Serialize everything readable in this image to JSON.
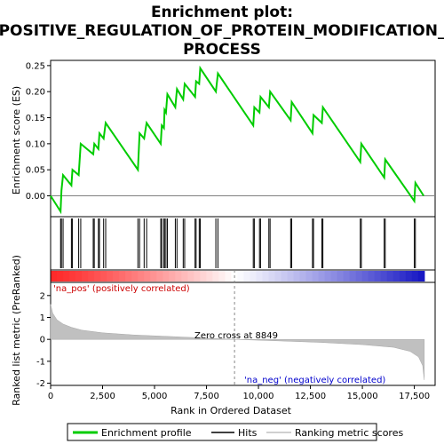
{
  "chart_data": {
    "type": "line",
    "title_lines": [
      "Enrichment plot:",
      "POSITIVE_REGULATION_OF_PROTEIN_MODIFICATION_",
      "PROCESS"
    ],
    "top_panel": {
      "ylabel": "Enrichment score (ES)",
      "ylim": [
        -0.04,
        0.26
      ],
      "yticks": [
        "0.00",
        "0.05",
        "0.10",
        "0.15",
        "0.20",
        "0.25"
      ],
      "ytick_values": [
        0.0,
        0.05,
        0.1,
        0.15,
        0.2,
        0.25
      ],
      "xlim": [
        0,
        18500
      ],
      "series_name": "Enrichment profile",
      "color": "#00cc00",
      "points": [
        [
          0,
          0.0
        ],
        [
          480,
          -0.03
        ],
        [
          520,
          0.01
        ],
        [
          600,
          0.04
        ],
        [
          1000,
          0.02
        ],
        [
          1050,
          0.05
        ],
        [
          1350,
          0.04
        ],
        [
          1450,
          0.1
        ],
        [
          2050,
          0.08
        ],
        [
          2100,
          0.1
        ],
        [
          2300,
          0.09
        ],
        [
          2350,
          0.12
        ],
        [
          2550,
          0.11
        ],
        [
          2650,
          0.14
        ],
        [
          4200,
          0.05
        ],
        [
          4280,
          0.12
        ],
        [
          4500,
          0.11
        ],
        [
          4620,
          0.14
        ],
        [
          5300,
          0.1
        ],
        [
          5350,
          0.135
        ],
        [
          5450,
          0.13
        ],
        [
          5480,
          0.165
        ],
        [
          5550,
          0.16
        ],
        [
          5620,
          0.195
        ],
        [
          6000,
          0.17
        ],
        [
          6080,
          0.205
        ],
        [
          6380,
          0.185
        ],
        [
          6450,
          0.215
        ],
        [
          6950,
          0.19
        ],
        [
          7000,
          0.22
        ],
        [
          7150,
          0.215
        ],
        [
          7200,
          0.245
        ],
        [
          7950,
          0.2
        ],
        [
          8050,
          0.235
        ],
        [
          9750,
          0.135
        ],
        [
          9800,
          0.17
        ],
        [
          10050,
          0.16
        ],
        [
          10100,
          0.19
        ],
        [
          10500,
          0.17
        ],
        [
          10560,
          0.2
        ],
        [
          11550,
          0.145
        ],
        [
          11600,
          0.18
        ],
        [
          12600,
          0.12
        ],
        [
          12650,
          0.155
        ],
        [
          13050,
          0.14
        ],
        [
          13100,
          0.17
        ],
        [
          14900,
          0.065
        ],
        [
          14950,
          0.1
        ],
        [
          16050,
          0.035
        ],
        [
          16100,
          0.07
        ],
        [
          17500,
          -0.01
        ],
        [
          17550,
          0.025
        ],
        [
          17950,
          0.0
        ]
      ]
    },
    "hits": [
      480,
      520,
      600,
      1000,
      1050,
      1350,
      1450,
      2050,
      2100,
      2300,
      2350,
      2550,
      2650,
      4200,
      4280,
      4500,
      4620,
      5300,
      5350,
      5450,
      5480,
      5550,
      5620,
      6000,
      6080,
      6380,
      6450,
      6950,
      7000,
      7150,
      7200,
      7950,
      8050,
      9750,
      9800,
      10050,
      10100,
      10500,
      10560,
      11550,
      11600,
      12600,
      12650,
      13050,
      13100,
      14900,
      14950,
      16050,
      16100,
      17500,
      17550
    ],
    "bottom_panel": {
      "ylabel": "Ranked list metric (PreRanked)",
      "xlabel": "Rank in Ordered Dataset",
      "ylim": [
        -2.1,
        2.6
      ],
      "yticks": [
        "-2",
        "-1",
        "0",
        "1",
        "2"
      ],
      "ytick_values": [
        -2,
        -1,
        0,
        1,
        2
      ],
      "xticks": [
        "0",
        "2,500",
        "5,000",
        "7,500",
        "10,000",
        "12,500",
        "15,000",
        "17,500"
      ],
      "xtick_values": [
        0,
        2500,
        5000,
        7500,
        10000,
        12500,
        15000,
        17500
      ],
      "zero_cross_label": "Zero cross at 8849",
      "zero_cross": 8849,
      "pos_label": "'na_pos' (positively correlated)",
      "neg_label": "'na_neg' (negatively correlated)",
      "metric_curve": [
        [
          0,
          1.6
        ],
        [
          100,
          1.2
        ],
        [
          300,
          0.9
        ],
        [
          600,
          0.7
        ],
        [
          1000,
          0.55
        ],
        [
          1500,
          0.42
        ],
        [
          2500,
          0.3
        ],
        [
          4000,
          0.2
        ],
        [
          6000,
          0.12
        ],
        [
          8849,
          0.0
        ],
        [
          11000,
          -0.07
        ],
        [
          13000,
          -0.14
        ],
        [
          15000,
          -0.24
        ],
        [
          16500,
          -0.36
        ],
        [
          17300,
          -0.55
        ],
        [
          17700,
          -0.8
        ],
        [
          17900,
          -1.2
        ],
        [
          17980,
          -1.85
        ]
      ]
    },
    "legend": [
      "Enrichment profile",
      "Hits",
      "Ranking metric scores"
    ],
    "colors": {
      "profile": "#00cc00",
      "hits": "#000000",
      "metric_fill": "#c0c0c0",
      "pos_text": "#cc0000",
      "neg_text": "#0000cc"
    }
  }
}
